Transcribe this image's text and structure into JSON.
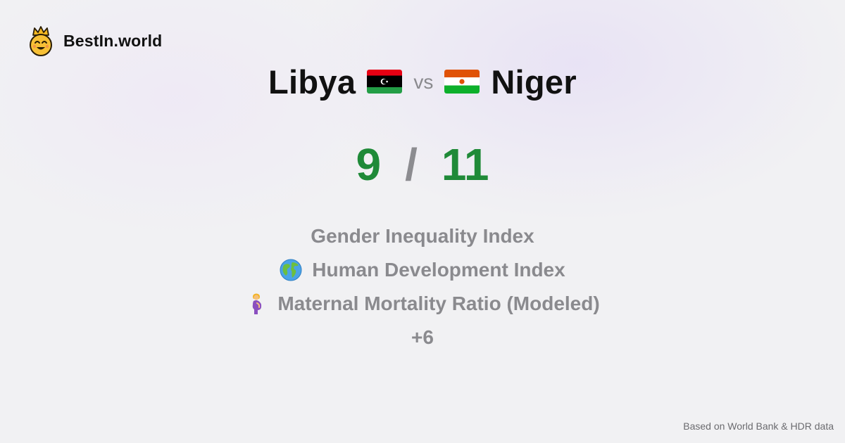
{
  "brand": {
    "name": "BestIn.world",
    "logo_icon": "crown-smiley-icon"
  },
  "comparison": {
    "left": {
      "country": "Libya",
      "flag_icon": "libya-flag-icon",
      "score": "9"
    },
    "vs_label": "vs",
    "right": {
      "country": "Niger",
      "flag_icon": "niger-flag-icon",
      "score": "11"
    },
    "separator": "/"
  },
  "metrics": [
    {
      "label": "Gender Inequality Index",
      "icon": null
    },
    {
      "label": "Human Development Index",
      "icon": "globe-icon"
    },
    {
      "label": "Maternal Mortality Ratio (Modeled)",
      "icon": "pregnant-woman-icon"
    }
  ],
  "more_count": "+6",
  "footer": {
    "source": "Based on World Bank & HDR data"
  },
  "colors": {
    "score_green": "#1f8a38",
    "muted_text": "#8a8a8e"
  }
}
